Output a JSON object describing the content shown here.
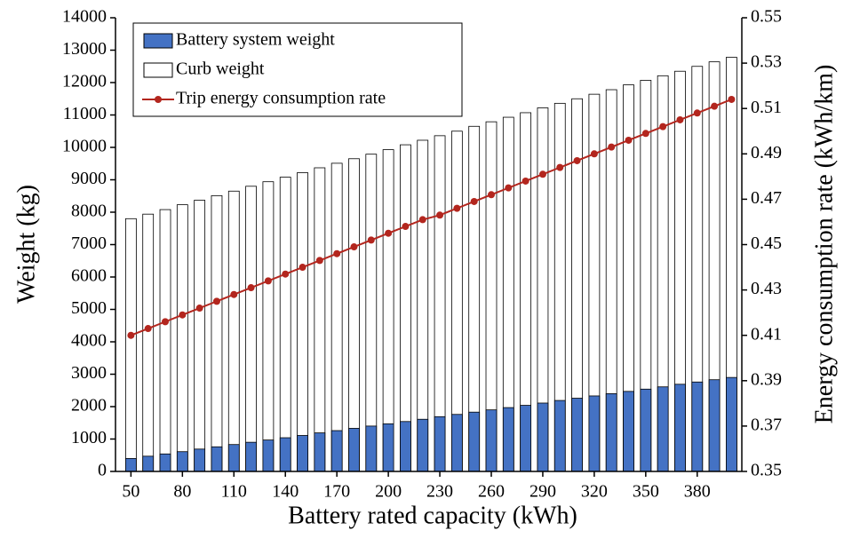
{
  "chart_data": {
    "type": "bar",
    "x_label": "Battery rated capacity (kWh)",
    "y_label": "Weight (kg)",
    "y2_label": "Energy consumption rate (kWh/km)",
    "x": [
      50,
      60,
      70,
      80,
      90,
      100,
      110,
      120,
      130,
      140,
      150,
      160,
      170,
      180,
      190,
      200,
      210,
      220,
      230,
      240,
      250,
      260,
      270,
      280,
      290,
      300,
      310,
      320,
      330,
      340,
      350,
      360,
      370,
      380,
      390,
      400
    ],
    "xlim": [
      41,
      406
    ],
    "xticks": [
      50,
      80,
      110,
      140,
      170,
      200,
      230,
      260,
      290,
      320,
      350,
      380
    ],
    "ylim": [
      0,
      14000
    ],
    "yticks": [
      0,
      1000,
      2000,
      3000,
      4000,
      5000,
      6000,
      7000,
      8000,
      9000,
      10000,
      11000,
      12000,
      13000,
      14000
    ],
    "y2lim": [
      0.35,
      0.55
    ],
    "y2ticks": [
      0.35,
      0.37,
      0.39,
      0.41,
      0.43,
      0.45,
      0.47,
      0.49,
      0.51,
      0.53,
      0.55
    ],
    "legend": "upper left",
    "series": [
      {
        "name": "Battery system weight",
        "color": "#4472c4",
        "type": "bar",
        "values": [
          400,
          470,
          540,
          610,
          690,
          760,
          830,
          900,
          970,
          1040,
          1110,
          1190,
          1260,
          1330,
          1400,
          1470,
          1540,
          1610,
          1690,
          1760,
          1830,
          1900,
          1970,
          2040,
          2110,
          2190,
          2260,
          2330,
          2400,
          2470,
          2540,
          2610,
          2690,
          2760,
          2830,
          2900
        ]
      },
      {
        "name": "Curb weight",
        "color": "#ffffff",
        "type": "bar",
        "values": [
          7800,
          7940,
          8080,
          8230,
          8370,
          8510,
          8650,
          8800,
          8940,
          9080,
          9220,
          9370,
          9510,
          9650,
          9790,
          9930,
          10080,
          10220,
          10360,
          10500,
          10650,
          10790,
          10930,
          11070,
          11220,
          11360,
          11500,
          11640,
          11780,
          11930,
          12070,
          12210,
          12350,
          12500,
          12640,
          12780
        ]
      },
      {
        "name": "Trip energy consumption rate",
        "color": "#b3261e",
        "type": "line",
        "axis": "y2",
        "values": [
          0.41,
          0.413,
          0.416,
          0.419,
          0.422,
          0.425,
          0.428,
          0.431,
          0.434,
          0.437,
          0.44,
          0.443,
          0.446,
          0.449,
          0.452,
          0.455,
          0.458,
          0.461,
          0.463,
          0.466,
          0.469,
          0.472,
          0.475,
          0.478,
          0.481,
          0.484,
          0.487,
          0.49,
          0.493,
          0.496,
          0.499,
          0.502,
          0.505,
          0.508,
          0.511,
          0.514
        ]
      }
    ]
  }
}
